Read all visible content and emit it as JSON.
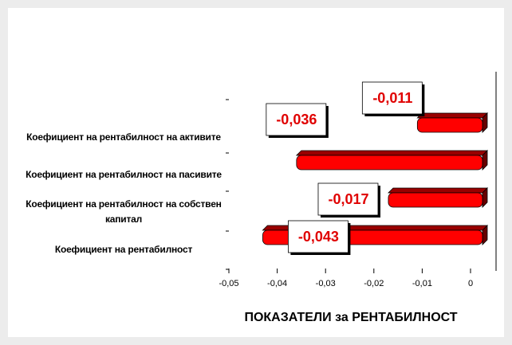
{
  "chart_data": {
    "type": "bar",
    "orientation": "horizontal",
    "title": "ПОКАЗАТЕЛИ за РЕНТАБИЛНОСТ",
    "categories": [
      "Коефициент на рентабилност на активите",
      "Коефициент на рентабилност на пасивите",
      "Коефициент на рентабилност на собствен капитал",
      "Коефициент на рентабилност"
    ],
    "values": [
      -0.011,
      -0.036,
      -0.017,
      -0.043
    ],
    "value_labels": [
      "-0,011",
      "-0,036",
      "-0,017",
      "-0,043"
    ],
    "color": "#ff0000",
    "xlim": [
      -0.05,
      0
    ],
    "xticks": [
      {
        "value": -0.05,
        "label": "-0,05"
      },
      {
        "value": -0.04,
        "label": "-0,04"
      },
      {
        "value": -0.03,
        "label": "-0,03"
      },
      {
        "value": -0.02,
        "label": "-0,02"
      },
      {
        "value": -0.01,
        "label": "-0,01"
      },
      0
    ]
  }
}
